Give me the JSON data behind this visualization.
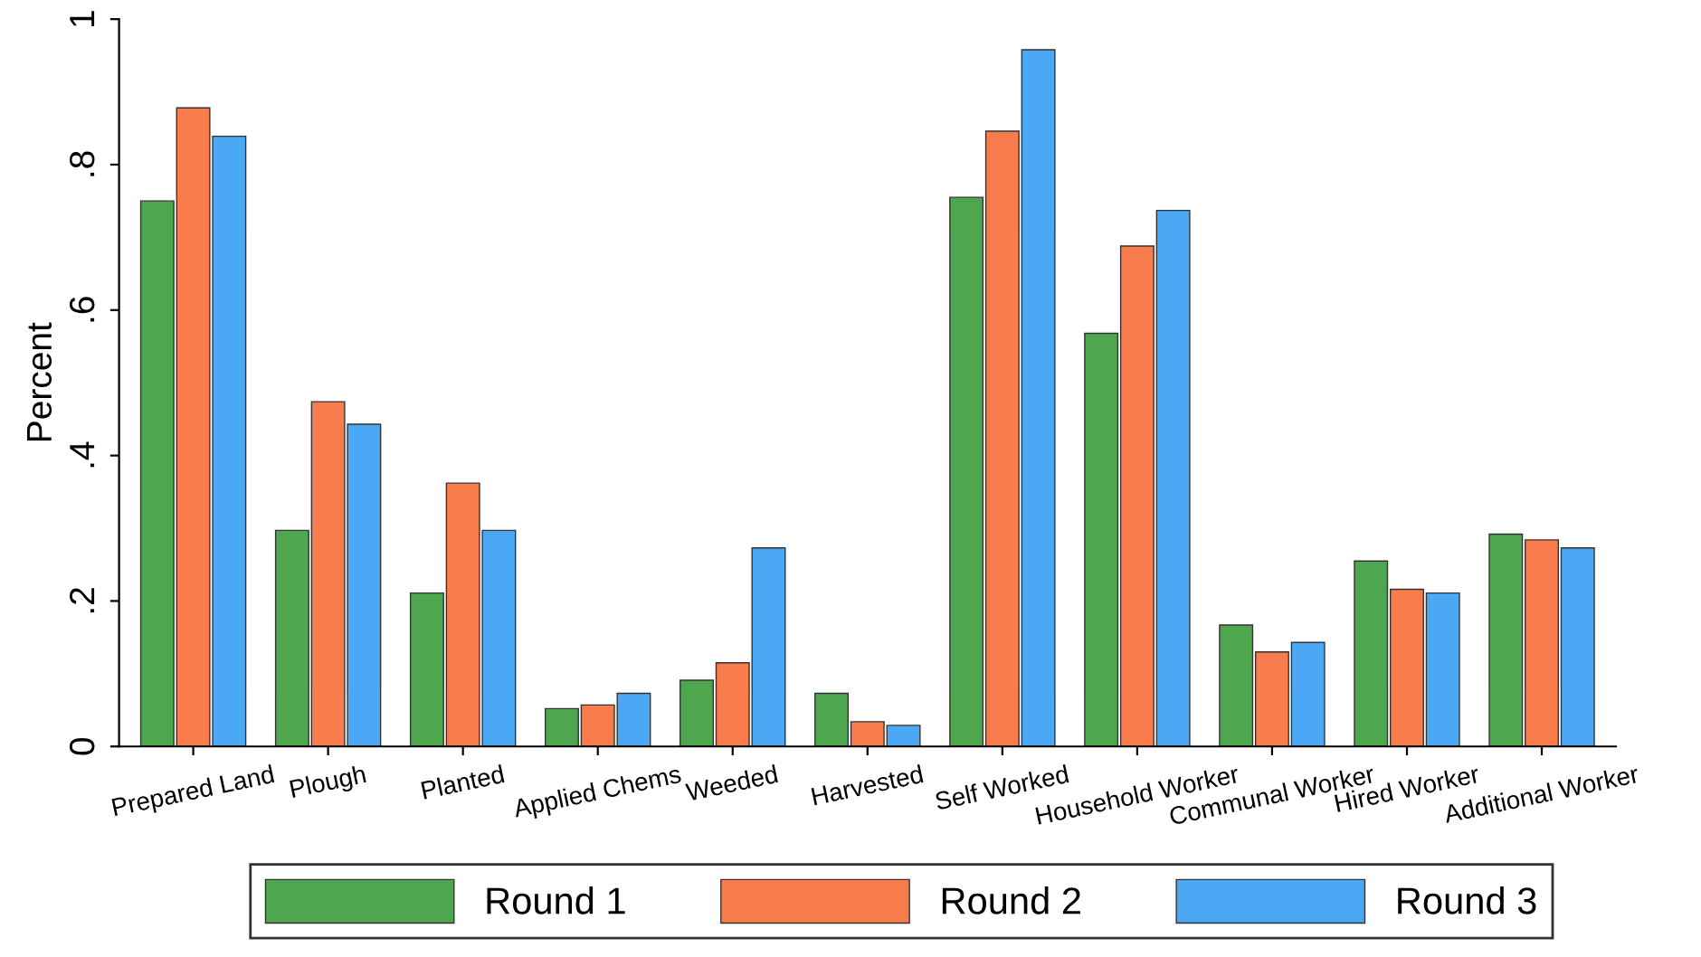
{
  "chart_data": {
    "type": "bar",
    "ylabel": "Percent",
    "categories": [
      "Prepared Land",
      "Plough",
      "Planted",
      "Applied Chems",
      "Weeded",
      "Harvested",
      "Self Worked",
      "Household Worker",
      "Communal Worker",
      "Hired Worker",
      "Additional Worker"
    ],
    "series": [
      {
        "name": "Round 1",
        "color": "#4ea64e",
        "values": [
          0.75,
          0.297,
          0.211,
          0.052,
          0.091,
          0.073,
          0.755,
          0.568,
          0.167,
          0.255,
          0.292
        ]
      },
      {
        "name": "Round 2",
        "color": "#f97c4c",
        "values": [
          0.878,
          0.474,
          0.362,
          0.057,
          0.115,
          0.034,
          0.846,
          0.688,
          0.13,
          0.216,
          0.284
        ]
      },
      {
        "name": "Round 3",
        "color": "#4aa8f5",
        "values": [
          0.839,
          0.443,
          0.297,
          0.073,
          0.273,
          0.029,
          0.958,
          0.737,
          0.143,
          0.211,
          0.273
        ]
      }
    ],
    "ylim": [
      0,
      1.0
    ],
    "yticks": [
      {
        "value": 0,
        "label": "0"
      },
      {
        "value": 0.2,
        "label": ".2"
      },
      {
        "value": 0.4,
        "label": ".4"
      },
      {
        "value": 0.6,
        "label": ".6"
      },
      {
        "value": 0.8,
        "label": ".8"
      },
      {
        "value": 1,
        "label": "1"
      }
    ],
    "grid": false,
    "legend": "bottom"
  }
}
